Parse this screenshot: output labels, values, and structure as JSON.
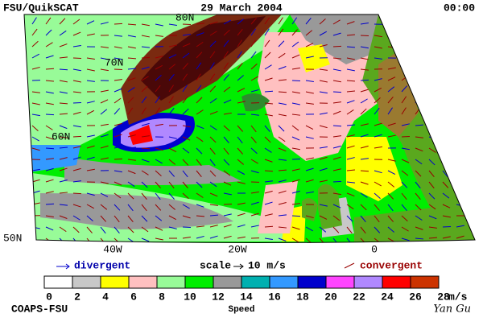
{
  "header": {
    "title": "FSU/QuikSCAT",
    "date": "29 March 2004",
    "time": "00:00"
  },
  "map": {
    "lat_labels": [
      "80N",
      "70N",
      "60N",
      "50N"
    ],
    "lon_labels": [
      "40W",
      "20W",
      "0"
    ]
  },
  "legend": {
    "divergent": "divergent",
    "scale": "scale",
    "scale_value": "10 m/s",
    "convergent": "convergent"
  },
  "colorbar": {
    "colors": [
      "#ffffff",
      "#c8c8c8",
      "#ffff00",
      "#ffc0c0",
      "#98fb98",
      "#00ee00",
      "#999999",
      "#00b0b0",
      "#3399ff",
      "#0000cc",
      "#ff44ff",
      "#b088ff",
      "#ff0000",
      "#cc3300",
      "#000000"
    ],
    "ticks": [
      0,
      2,
      4,
      6,
      8,
      10,
      12,
      14,
      16,
      18,
      20,
      22,
      24,
      26,
      28
    ],
    "unit": "m/s",
    "label": "Speed"
  },
  "footer": {
    "credit": "COAPS-FSU",
    "author": "Yan Gu"
  }
}
